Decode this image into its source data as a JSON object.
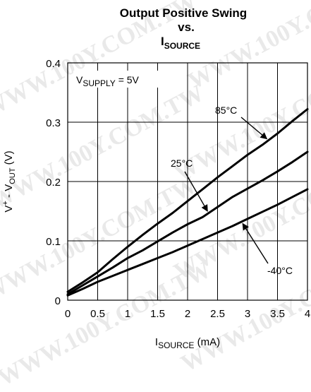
{
  "watermark": "WWW.100Y.COM.TW",
  "chart_data": {
    "type": "line",
    "title": {
      "line1": "Output Positive Swing",
      "line2": "vs.",
      "line3_main": "I",
      "line3_sub": "SOURCE"
    },
    "xlabel": {
      "main": "I",
      "sub": "SOURCE",
      "unit": " (mA)"
    },
    "ylabel": {
      "pre": "V",
      "sup": "+",
      "mid": " - V",
      "sub": "OUT",
      "unit": " (V)"
    },
    "xlim": [
      0,
      4
    ],
    "ylim": [
      0,
      0.4
    ],
    "xticks": [
      "0",
      "0.5",
      "1",
      "1.5",
      "2",
      "2.5",
      "3",
      "3.5",
      "4"
    ],
    "yticks": [
      "0",
      "0.1",
      "0.2",
      "0.3",
      "0.4"
    ],
    "grid": true,
    "supply_note": {
      "main": "V",
      "sub": "SUPPLY",
      "rest": " = 5V"
    },
    "series": [
      {
        "name": "85°C",
        "x": [
          0,
          0.25,
          0.5,
          0.75,
          1,
          1.25,
          1.5,
          1.75,
          2,
          2.25,
          2.5,
          2.75,
          3,
          3.25,
          3.5,
          3.75,
          4
        ],
        "y": [
          0.014,
          0.03,
          0.047,
          0.069,
          0.09,
          0.11,
          0.129,
          0.147,
          0.167,
          0.187,
          0.207,
          0.226,
          0.245,
          0.262,
          0.281,
          0.302,
          0.322
        ]
      },
      {
        "name": "25°C",
        "x": [
          0,
          0.25,
          0.5,
          0.75,
          1,
          1.25,
          1.5,
          1.75,
          2,
          2.25,
          2.5,
          2.75,
          3,
          3.25,
          3.5,
          3.75,
          4
        ],
        "y": [
          0.01,
          0.025,
          0.04,
          0.055,
          0.071,
          0.084,
          0.099,
          0.114,
          0.128,
          0.14,
          0.157,
          0.174,
          0.188,
          0.202,
          0.217,
          0.233,
          0.25
        ]
      },
      {
        "name": "-40°C",
        "x": [
          0,
          0.25,
          0.5,
          0.75,
          1,
          1.25,
          1.5,
          1.75,
          2,
          2.25,
          2.5,
          2.75,
          3,
          3.25,
          3.5,
          3.75,
          4
        ],
        "y": [
          0.008,
          0.019,
          0.031,
          0.041,
          0.051,
          0.061,
          0.071,
          0.081,
          0.092,
          0.103,
          0.114,
          0.125,
          0.137,
          0.149,
          0.161,
          0.174,
          0.187
        ]
      }
    ],
    "annotations": [
      {
        "series": "85°C",
        "text": "85°C"
      },
      {
        "series": "25°C",
        "text": "25°C"
      },
      {
        "series": "-40°C",
        "text": "-40°C"
      }
    ]
  }
}
